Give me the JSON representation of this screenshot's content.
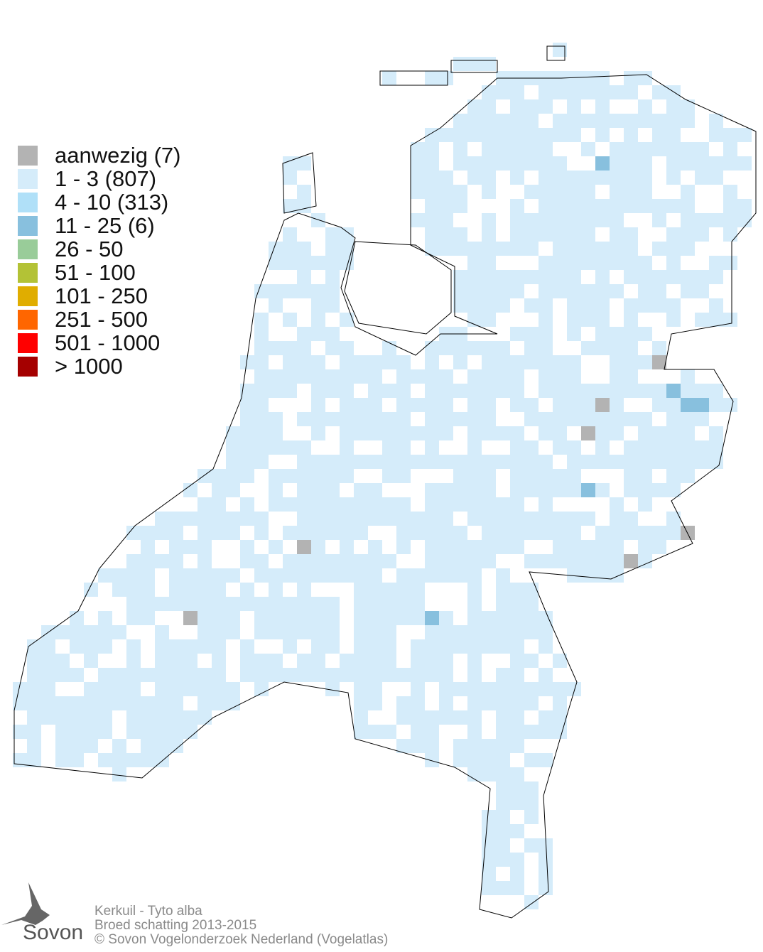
{
  "legend": [
    {
      "label": "aanwezig (7)",
      "color": "#b3b3b3"
    },
    {
      "label": "1 - 3 (807)",
      "color": "#d5ecfa"
    },
    {
      "label": "4 - 10 (313)",
      "color": "#b0e0f8"
    },
    {
      "label": "11 - 25 (6)",
      "color": "#88c0de"
    },
    {
      "label": "26 - 50",
      "color": "#99cc99"
    },
    {
      "label": "51 - 100",
      "color": "#b3c236"
    },
    {
      "label": "101 - 250",
      "color": "#e0ad00"
    },
    {
      "label": "251 - 500",
      "color": "#ff6600"
    },
    {
      "label": "501 - 1000",
      "color": "#ff0000"
    },
    {
      "label": "> 1000",
      "color": "#a50000"
    }
  ],
  "credits": {
    "species": "Kerkuil - Tyto alba",
    "subtitle": "Broed schatting 2013-2015",
    "copyright": "© Sovon Vogelonderzoek Nederland (Vogelatlas)"
  },
  "logo": {
    "text": "Sovon"
  }
}
